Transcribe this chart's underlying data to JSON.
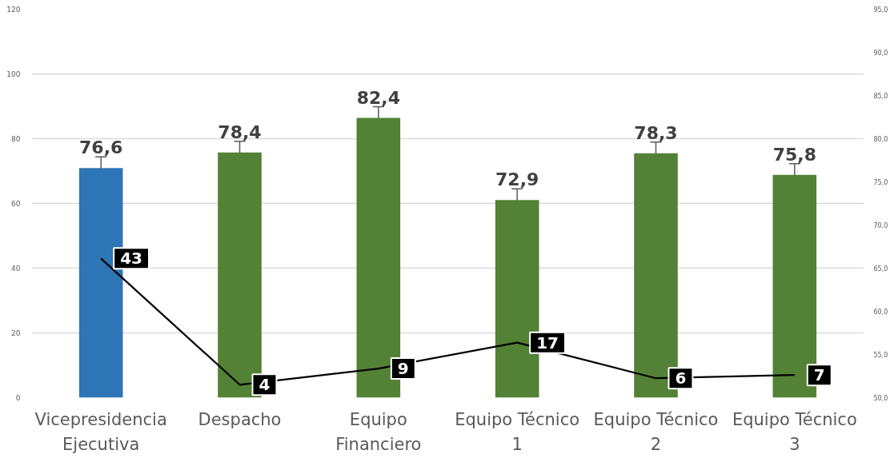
{
  "chart_data": {
    "type": "bar",
    "categories": [
      "Vicepresidencia Ejecutiva",
      "Despacho",
      "Equipo Financiero",
      "Equipo Técnico 1",
      "Equipo Técnico 2",
      "Equipo Técnico 3"
    ],
    "series": [
      {
        "axis": "y2",
        "colors": [
          "#2e75b6",
          "#538135",
          "#538135",
          "#538135",
          "#538135",
          "#538135"
        ],
        "values": [
          76.6,
          78.4,
          82.4,
          72.9,
          78.3,
          75.8
        ],
        "errors": [
          1.3,
          1.3,
          1.3,
          1.3,
          1.3,
          1.3
        ],
        "value_labels": [
          "76,6",
          "78,4",
          "82,4",
          "72,9",
          "78,3",
          "75,8"
        ]
      },
      {
        "type": "line",
        "color": "#000000",
        "line_style": "solid",
        "values": [
          43,
          4,
          9,
          17,
          6,
          7
        ],
        "value_labels": [
          "43",
          "4",
          "9",
          "17",
          "6",
          "7"
        ]
      }
    ],
    "ylim": [
      0,
      120
    ],
    "yticks": [
      0,
      20,
      40,
      60,
      80,
      100,
      120
    ],
    "y2lim": [
      50,
      95
    ],
    "y2ticks": [
      {
        "value": 50,
        "label": "50,0"
      },
      {
        "value": 55,
        "label": "55,0"
      },
      {
        "value": 60,
        "label": "60,0"
      },
      {
        "value": 65,
        "label": "65,0"
      },
      {
        "value": 70,
        "label": "70,0"
      },
      {
        "value": 75,
        "label": "75,0"
      },
      {
        "value": 80,
        "label": "80,0"
      },
      {
        "value": 85,
        "label": "85,0"
      },
      {
        "value": 90,
        "label": "90,0"
      },
      {
        "value": 95,
        "label": "95,0"
      }
    ],
    "grid": "y"
  }
}
